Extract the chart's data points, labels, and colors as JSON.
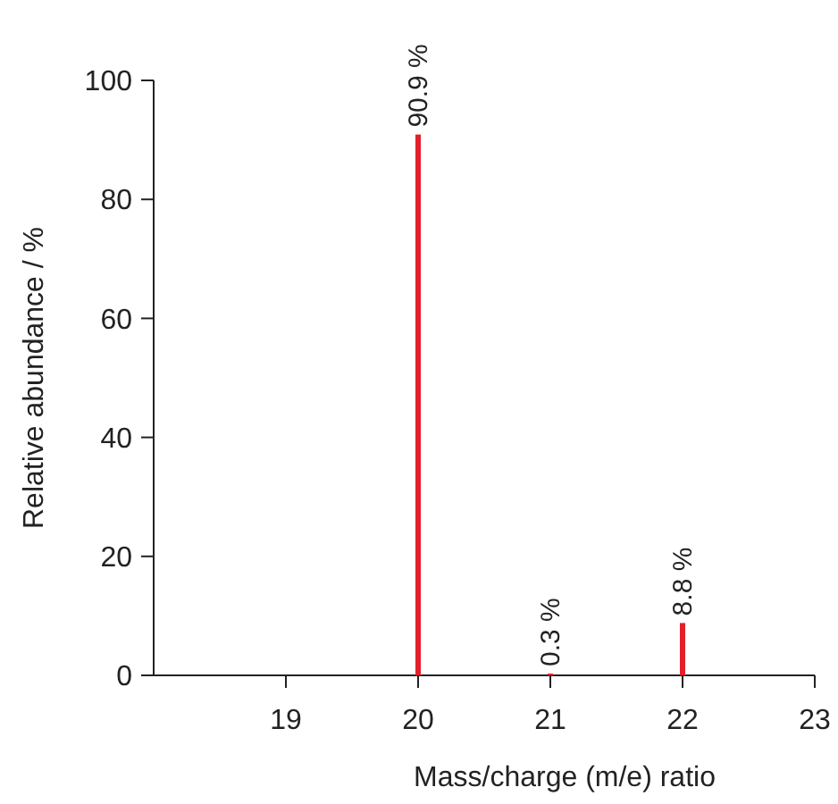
{
  "chart_data": {
    "type": "bar",
    "xlabel": "Mass/charge (m/e) ratio",
    "ylabel": "Relative abundance / %",
    "x": [
      20,
      21,
      22
    ],
    "values": [
      90.9,
      0.3,
      8.8
    ],
    "color": "#e3202a",
    "value_labels": [
      "90.9 %",
      "0.3 %",
      "8.8 %"
    ],
    "xlim": [
      18,
      23
    ],
    "xticks": [
      19,
      20,
      21,
      22,
      23
    ],
    "ylim": [
      0,
      100
    ],
    "yticks": [
      0,
      20,
      40,
      60,
      80,
      100
    ]
  }
}
